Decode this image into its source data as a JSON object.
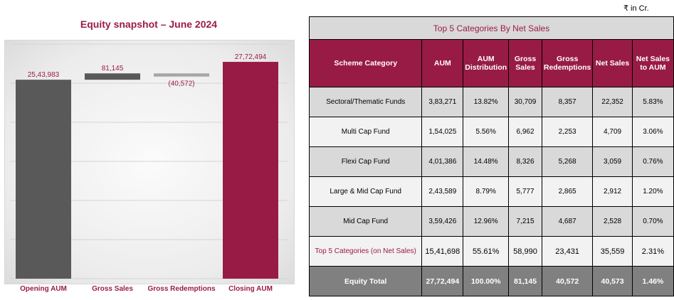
{
  "chart_data": {
    "type": "waterfall",
    "title": "Equity snapshot – June 2024",
    "categories": [
      "Opening AUM",
      "Gross Sales",
      "Gross Redemptions",
      "Closing AUM"
    ],
    "values": [
      2543983,
      81145,
      -40572,
      2772494
    ],
    "data_labels": [
      "25,43,983",
      "81,145",
      "(40,572)",
      "27,72,494"
    ],
    "ylim": [
      0,
      3000000
    ],
    "grid": true,
    "colors": {
      "opening": "#595959",
      "gross_sales": "#595959",
      "gross_redemptions": "#a6a6a6",
      "closing": "#981b46",
      "label": "#9b1b47"
    }
  },
  "unit_note": "₹ in Cr.",
  "table": {
    "title": "Top 5 Categories By Net Sales",
    "headers": [
      "Scheme Category",
      "AUM",
      "AUM Distribution",
      "Gross Sales",
      "Gross Redemptions",
      "Net Sales",
      "Net Sales to AUM"
    ],
    "rows": [
      [
        "Sectoral/Thematic Funds",
        "3,83,271",
        "13.82%",
        "30,709",
        "8,357",
        "22,352",
        "5.83%"
      ],
      [
        "Multi Cap Fund",
        "1,54,025",
        "5.56%",
        "6,962",
        "2,253",
        "4,709",
        "3.06%"
      ],
      [
        "Flexi Cap Fund",
        "4,01,386",
        "14.48%",
        "8,326",
        "5,268",
        "3,059",
        "0.76%"
      ],
      [
        "Large & Mid Cap Fund",
        "2,43,589",
        "8.79%",
        "5,777",
        "2,865",
        "2,912",
        "1.20%"
      ],
      [
        "Mid Cap Fund",
        "3,59,426",
        "12.96%",
        "7,215",
        "4,687",
        "2,528",
        "0.70%"
      ]
    ],
    "top5": [
      "Top 5 Categories (on Net Sales)",
      "15,41,698",
      "55.61%",
      "58,990",
      "23,431",
      "35,559",
      "2.31%"
    ],
    "total": [
      "Equity Total",
      "27,72,494",
      "100.00%",
      "81,145",
      "40,572",
      "40,573",
      "1.46%"
    ]
  }
}
